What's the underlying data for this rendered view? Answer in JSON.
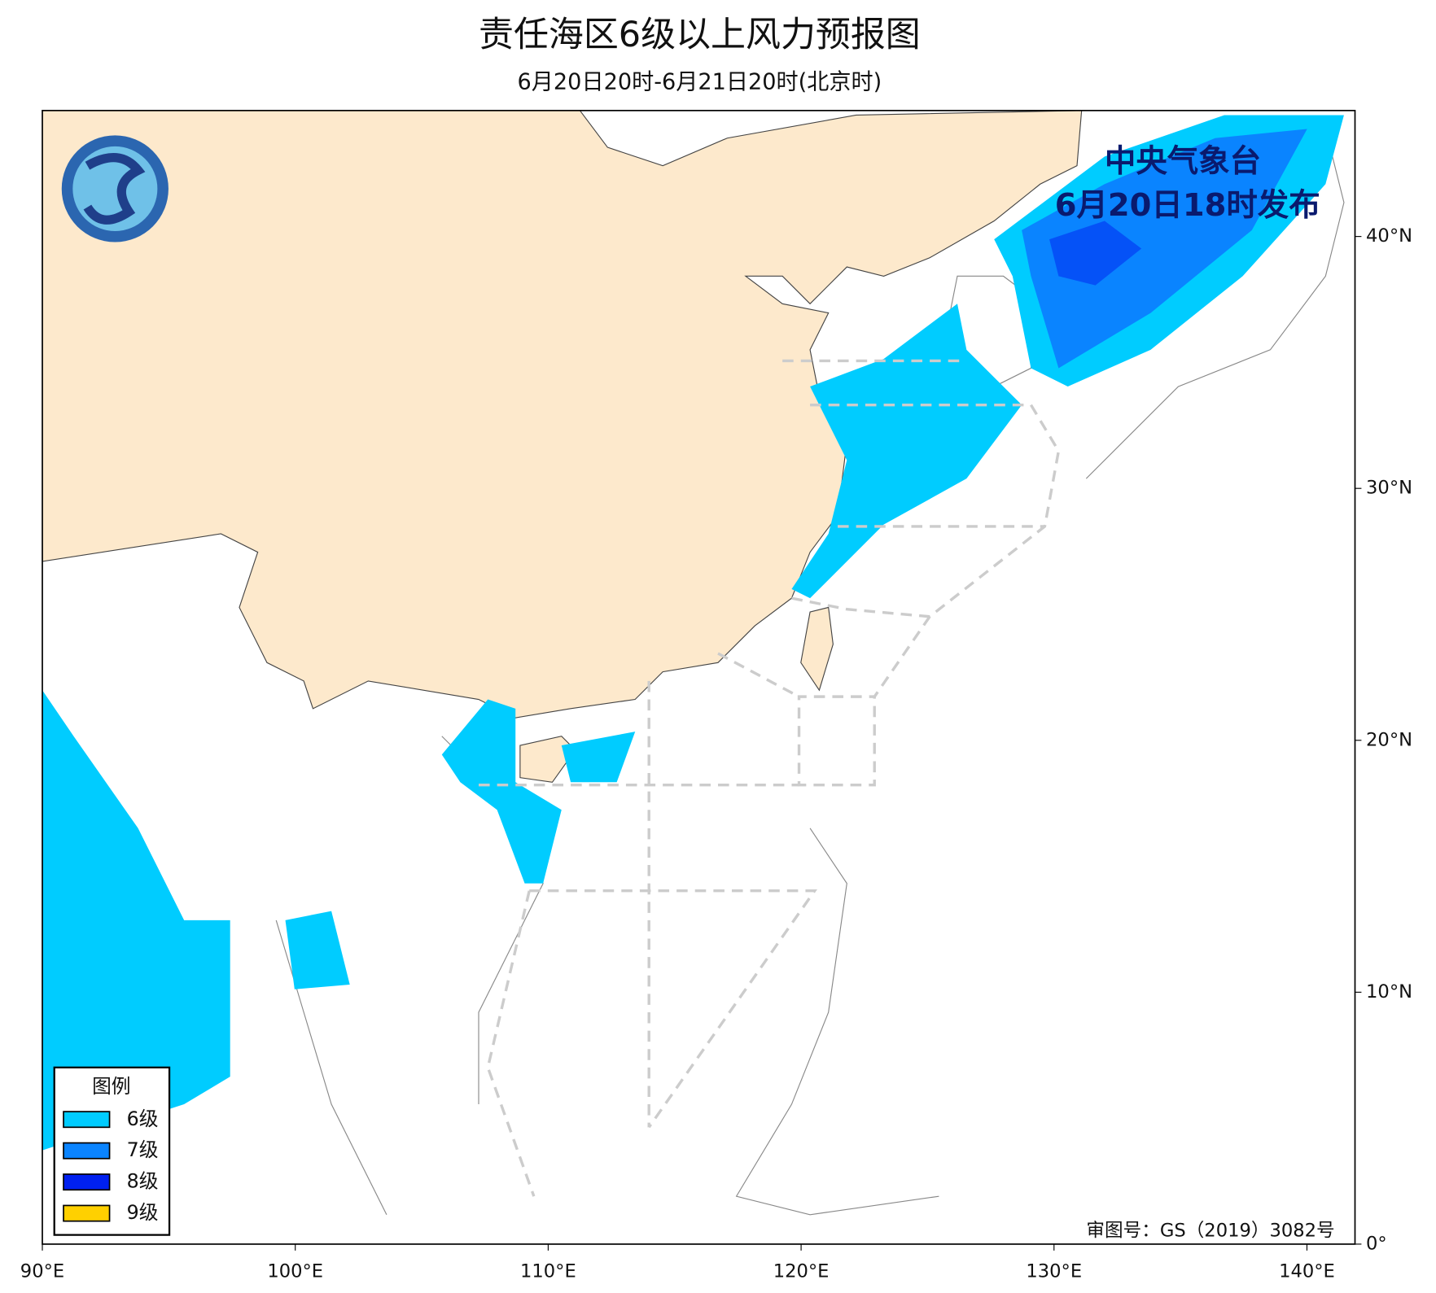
{
  "title": "责任海区6级以上风力预报图",
  "subtitle": "6月20日20时-6月21日20时(北京时)",
  "issuer": "中央气象台",
  "issued": "6月20日18时发布",
  "legend": {
    "title": "图例",
    "items": [
      {
        "label": "6级",
        "color": "#00ccff"
      },
      {
        "label": "7级",
        "color": "#0a84ff"
      },
      {
        "label": "8级",
        "color": "#0020f0"
      },
      {
        "label": "9级",
        "color": "#ffd000"
      }
    ]
  },
  "approval": "审图号：GS（2019）3082号",
  "map": {
    "xlim": [
      90,
      141.9
    ],
    "ylim": [
      0,
      45
    ],
    "xticks": [
      {
        "value": 90,
        "label": "90°E"
      },
      {
        "value": 100,
        "label": "100°E"
      },
      {
        "value": 110,
        "label": "110°E"
      },
      {
        "value": 120,
        "label": "120°E"
      },
      {
        "value": 130,
        "label": "130°E"
      },
      {
        "value": 140,
        "label": "140°E"
      }
    ],
    "yticks": [
      {
        "value": 0,
        "label": "0°"
      },
      {
        "value": 10,
        "label": "10°N"
      },
      {
        "value": 20,
        "label": "20°N"
      },
      {
        "value": 30,
        "label": "30°N"
      },
      {
        "value": 40,
        "label": "40°N"
      }
    ]
  }
}
